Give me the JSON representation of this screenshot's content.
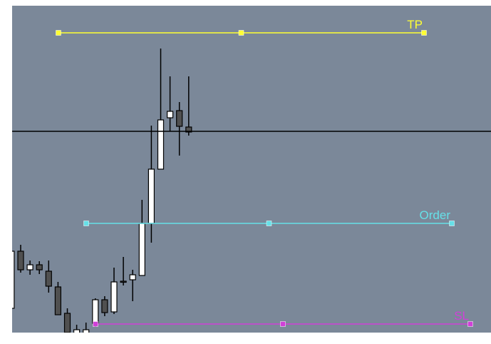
{
  "chart_data": {
    "type": "candlestick",
    "ylim": [
      34,
      492
    ],
    "open": [
      68,
      148,
      122,
      129,
      120,
      98,
      61,
      32,
      22,
      47,
      80,
      63,
      106,
      108,
      114,
      187,
      263,
      335,
      345,
      322
    ],
    "high": [
      148,
      157,
      135,
      134,
      135,
      105,
      68,
      45,
      48,
      82,
      85,
      125,
      140,
      122,
      220,
      324,
      432,
      393,
      357,
      393
    ],
    "low": [
      68,
      118,
      115,
      116,
      90,
      59,
      34,
      30,
      20,
      42,
      57,
      60,
      100,
      78,
      114,
      160,
      263,
      316,
      282,
      310
    ],
    "close": [
      148,
      122,
      129,
      122,
      99,
      59,
      34,
      38,
      38,
      80,
      62,
      105,
      105,
      115,
      187,
      263,
      332,
      344,
      323,
      315
    ],
    "up_color": "#ffffff",
    "down_color": "#505050",
    "current_price": 316,
    "levels": [
      {
        "name": "TP",
        "color": "#ffff33",
        "value": 454
      },
      {
        "name": "Order",
        "color": "#66e0e8",
        "value": 187
      },
      {
        "name": "SL",
        "color": "#d040d8",
        "value": 46
      }
    ]
  }
}
